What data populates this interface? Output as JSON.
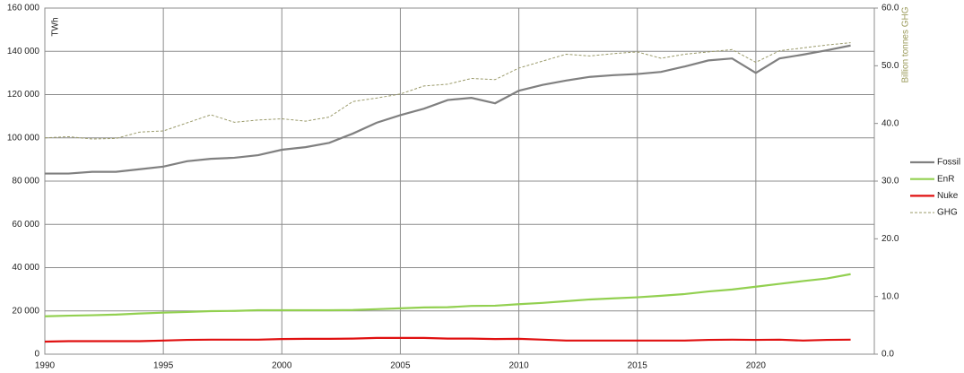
{
  "chart_data": {
    "type": "line",
    "y_label": "TWh",
    "y2_label": "Billion tonnes GHG",
    "y2_label_color": "#9a9a5a",
    "x": [
      1990,
      1991,
      1992,
      1993,
      1994,
      1995,
      1996,
      1997,
      1998,
      1999,
      2000,
      2001,
      2002,
      2003,
      2004,
      2005,
      2006,
      2007,
      2008,
      2009,
      2010,
      2011,
      2012,
      2013,
      2014,
      2015,
      2016,
      2017,
      2018,
      2019,
      2020,
      2021,
      2022,
      2023,
      2024
    ],
    "xlim": [
      1990,
      2025
    ],
    "xticks": [
      1990,
      1995,
      2000,
      2005,
      2010,
      2015,
      2020
    ],
    "ylim": [
      0,
      160000
    ],
    "yticks": [
      {
        "value": 0,
        "label": "0"
      },
      {
        "value": 20000,
        "label": "20 000"
      },
      {
        "value": 40000,
        "label": "40 000"
      },
      {
        "value": 60000,
        "label": "60 000"
      },
      {
        "value": 80000,
        "label": "80 000"
      },
      {
        "value": 100000,
        "label": "100 000"
      },
      {
        "value": 120000,
        "label": "120 000"
      },
      {
        "value": 140000,
        "label": "140 000"
      },
      {
        "value": 160000,
        "label": "160 000"
      }
    ],
    "y2lim": [
      0,
      60
    ],
    "y2ticks": [
      {
        "value": 0,
        "label": "0.0"
      },
      {
        "value": 10,
        "label": "10.0"
      },
      {
        "value": 20,
        "label": "20.0"
      },
      {
        "value": 30,
        "label": "30.0"
      },
      {
        "value": 40,
        "label": "40.0"
      },
      {
        "value": 50,
        "label": "50.0"
      },
      {
        "value": 60,
        "label": "60.0"
      }
    ],
    "grid": true,
    "legend": "right",
    "series": [
      {
        "name": "Fossil",
        "color": "#808080",
        "values": [
          83500,
          83500,
          84300,
          84300,
          85500,
          86700,
          89200,
          90300,
          90800,
          92000,
          94500,
          95700,
          97700,
          102000,
          107000,
          110500,
          113500,
          117500,
          118500,
          116000,
          121800,
          124500,
          126500,
          128200,
          129000,
          129500,
          130500,
          133000,
          135800,
          136700,
          130000,
          136700,
          138500,
          140500,
          142700
        ]
      },
      {
        "name": "EnR",
        "color": "#92d050",
        "values": [
          17500,
          17800,
          18000,
          18300,
          18800,
          19200,
          19500,
          19900,
          20000,
          20300,
          20300,
          20300,
          20300,
          20400,
          20800,
          21200,
          21600,
          21700,
          22300,
          22400,
          23100,
          23700,
          24500,
          25300,
          25800,
          26300,
          27000,
          27800,
          29000,
          29900,
          31200,
          32500,
          33800,
          35000,
          37000
        ]
      },
      {
        "name": "Nuke",
        "color": "#e01010",
        "values": [
          5800,
          6000,
          6000,
          6000,
          6000,
          6300,
          6600,
          6700,
          6700,
          6700,
          7000,
          7100,
          7100,
          7200,
          7500,
          7500,
          7500,
          7200,
          7200,
          7000,
          7100,
          6700,
          6300,
          6300,
          6300,
          6300,
          6300,
          6300,
          6600,
          6700,
          6600,
          6700,
          6300,
          6600,
          6700
        ]
      },
      {
        "name": "GHG",
        "color": "#9a9a6a",
        "axis": "y2",
        "line_style": "dashed",
        "values": [
          37.5,
          37.7,
          37.3,
          37.4,
          38.5,
          38.7,
          40.1,
          41.5,
          40.2,
          40.6,
          40.8,
          40.4,
          41.1,
          43.8,
          44.4,
          45.1,
          46.5,
          46.8,
          47.8,
          47.6,
          49.6,
          50.8,
          52.0,
          51.7,
          52.1,
          52.4,
          51.3,
          52.0,
          52.4,
          52.8,
          50.6,
          52.6,
          53.1,
          53.6,
          54.0
        ]
      }
    ]
  }
}
